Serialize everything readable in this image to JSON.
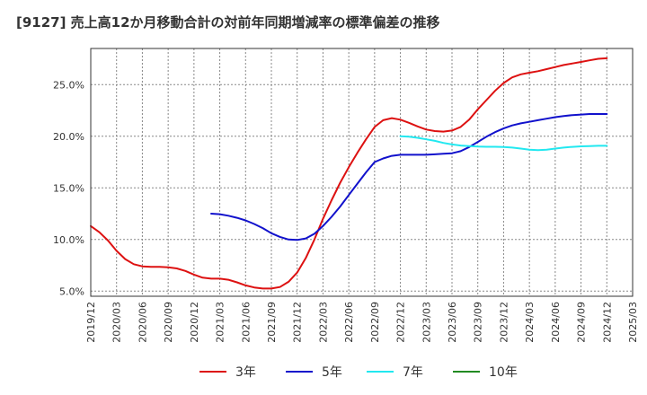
{
  "title": "[9127]  売上高12か月移動合計の対前年同期増減率の標準偏差の推移",
  "chart_data": {
    "type": "line",
    "title": "[9127]  売上高12か月移動合計の対前年同期増減率の標準偏差の推移",
    "xlabel": "",
    "ylabel": "",
    "x_ticks": [
      "2019/12",
      "2020/03",
      "2020/06",
      "2020/09",
      "2020/12",
      "2021/03",
      "2021/06",
      "2021/09",
      "2021/12",
      "2022/03",
      "2022/06",
      "2022/09",
      "2022/12",
      "2023/03",
      "2023/06",
      "2023/09",
      "2023/12",
      "2024/03",
      "2024/06",
      "2024/09",
      "2024/12",
      "2025/03"
    ],
    "y_ticks": [
      "5.0%",
      "10.0%",
      "15.0%",
      "20.0%",
      "25.0%"
    ],
    "y_tick_values": [
      5,
      10,
      15,
      20,
      25
    ],
    "ylim": [
      4.5,
      28.5
    ],
    "x_range": [
      "2019/12",
      "2025/03"
    ],
    "grid": true,
    "legend_position": "bottom",
    "series": [
      {
        "name": "3年",
        "color": "#dd1111",
        "points": [
          [
            "2019/12",
            11.3
          ],
          [
            "2020/01",
            10.7
          ],
          [
            "2020/02",
            9.9
          ],
          [
            "2020/03",
            8.9
          ],
          [
            "2020/04",
            8.1
          ],
          [
            "2020/05",
            7.6
          ],
          [
            "2020/06",
            7.4
          ],
          [
            "2020/07",
            7.35
          ],
          [
            "2020/08",
            7.35
          ],
          [
            "2020/09",
            7.3
          ],
          [
            "2020/10",
            7.2
          ],
          [
            "2020/11",
            6.95
          ],
          [
            "2020/12",
            6.6
          ],
          [
            "2021/01",
            6.3
          ],
          [
            "2021/02",
            6.2
          ],
          [
            "2021/03",
            6.2
          ],
          [
            "2021/04",
            6.1
          ],
          [
            "2021/05",
            5.85
          ],
          [
            "2021/06",
            5.55
          ],
          [
            "2021/07",
            5.35
          ],
          [
            "2021/08",
            5.25
          ],
          [
            "2021/09",
            5.25
          ],
          [
            "2021/10",
            5.4
          ],
          [
            "2021/11",
            5.9
          ],
          [
            "2021/12",
            6.8
          ],
          [
            "2022/01",
            8.2
          ],
          [
            "2022/02",
            10.0
          ],
          [
            "2022/03",
            12.0
          ],
          [
            "2022/04",
            13.8
          ],
          [
            "2022/05",
            15.5
          ],
          [
            "2022/06",
            17.0
          ],
          [
            "2022/07",
            18.4
          ],
          [
            "2022/08",
            19.7
          ],
          [
            "2022/09",
            20.9
          ],
          [
            "2022/10",
            21.55
          ],
          [
            "2022/11",
            21.75
          ],
          [
            "2022/12",
            21.6
          ],
          [
            "2023/01",
            21.3
          ],
          [
            "2023/02",
            20.95
          ],
          [
            "2023/03",
            20.65
          ],
          [
            "2023/04",
            20.5
          ],
          [
            "2023/05",
            20.45
          ],
          [
            "2023/06",
            20.55
          ],
          [
            "2023/07",
            20.9
          ],
          [
            "2023/08",
            21.6
          ],
          [
            "2023/09",
            22.6
          ],
          [
            "2023/10",
            23.5
          ],
          [
            "2023/11",
            24.4
          ],
          [
            "2023/12",
            25.15
          ],
          [
            "2024/01",
            25.7
          ],
          [
            "2024/02",
            26.0
          ],
          [
            "2024/03",
            26.15
          ],
          [
            "2024/04",
            26.3
          ],
          [
            "2024/05",
            26.5
          ],
          [
            "2024/06",
            26.7
          ],
          [
            "2024/07",
            26.9
          ],
          [
            "2024/08",
            27.05
          ],
          [
            "2024/09",
            27.2
          ],
          [
            "2024/10",
            27.35
          ],
          [
            "2024/11",
            27.5
          ],
          [
            "2024/12",
            27.55
          ]
        ]
      },
      {
        "name": "5年",
        "color": "#1111cc",
        "points": [
          [
            "2021/02",
            12.5
          ],
          [
            "2021/03",
            12.45
          ],
          [
            "2021/04",
            12.3
          ],
          [
            "2021/05",
            12.1
          ],
          [
            "2021/06",
            11.85
          ],
          [
            "2021/07",
            11.5
          ],
          [
            "2021/08",
            11.1
          ],
          [
            "2021/09",
            10.6
          ],
          [
            "2021/10",
            10.25
          ],
          [
            "2021/11",
            10.0
          ],
          [
            "2021/12",
            9.95
          ],
          [
            "2022/01",
            10.1
          ],
          [
            "2022/02",
            10.55
          ],
          [
            "2022/03",
            11.3
          ],
          [
            "2022/04",
            12.2
          ],
          [
            "2022/05",
            13.2
          ],
          [
            "2022/06",
            14.3
          ],
          [
            "2022/07",
            15.4
          ],
          [
            "2022/08",
            16.5
          ],
          [
            "2022/09",
            17.5
          ],
          [
            "2022/10",
            17.85
          ],
          [
            "2022/11",
            18.1
          ],
          [
            "2022/12",
            18.2
          ],
          [
            "2023/01",
            18.2
          ],
          [
            "2023/02",
            18.2
          ],
          [
            "2023/03",
            18.2
          ],
          [
            "2023/04",
            18.25
          ],
          [
            "2023/05",
            18.3
          ],
          [
            "2023/06",
            18.35
          ],
          [
            "2023/07",
            18.55
          ],
          [
            "2023/08",
            18.95
          ],
          [
            "2023/09",
            19.45
          ],
          [
            "2023/10",
            19.95
          ],
          [
            "2023/11",
            20.4
          ],
          [
            "2023/12",
            20.75
          ],
          [
            "2024/01",
            21.05
          ],
          [
            "2024/02",
            21.25
          ],
          [
            "2024/03",
            21.4
          ],
          [
            "2024/04",
            21.55
          ],
          [
            "2024/05",
            21.7
          ],
          [
            "2024/06",
            21.85
          ],
          [
            "2024/07",
            21.95
          ],
          [
            "2024/08",
            22.05
          ],
          [
            "2024/09",
            22.1
          ],
          [
            "2024/10",
            22.15
          ],
          [
            "2024/11",
            22.15
          ],
          [
            "2024/12",
            22.15
          ]
        ]
      },
      {
        "name": "7年",
        "color": "#22e8f0",
        "points": [
          [
            "2022/12",
            20.0
          ],
          [
            "2023/01",
            19.95
          ],
          [
            "2023/02",
            19.85
          ],
          [
            "2023/03",
            19.7
          ],
          [
            "2023/04",
            19.55
          ],
          [
            "2023/05",
            19.35
          ],
          [
            "2023/06",
            19.2
          ],
          [
            "2023/07",
            19.1
          ],
          [
            "2023/08",
            19.05
          ],
          [
            "2023/09",
            19.0
          ],
          [
            "2023/10",
            18.98
          ],
          [
            "2023/11",
            18.98
          ],
          [
            "2023/12",
            18.95
          ],
          [
            "2024/01",
            18.9
          ],
          [
            "2024/02",
            18.8
          ],
          [
            "2024/03",
            18.7
          ],
          [
            "2024/04",
            18.65
          ],
          [
            "2024/05",
            18.7
          ],
          [
            "2024/06",
            18.8
          ],
          [
            "2024/07",
            18.9
          ],
          [
            "2024/08",
            18.97
          ],
          [
            "2024/09",
            19.02
          ],
          [
            "2024/10",
            19.05
          ],
          [
            "2024/11",
            19.07
          ],
          [
            "2024/12",
            19.07
          ]
        ]
      },
      {
        "name": "10年",
        "color": "#228b22",
        "points": []
      }
    ]
  }
}
